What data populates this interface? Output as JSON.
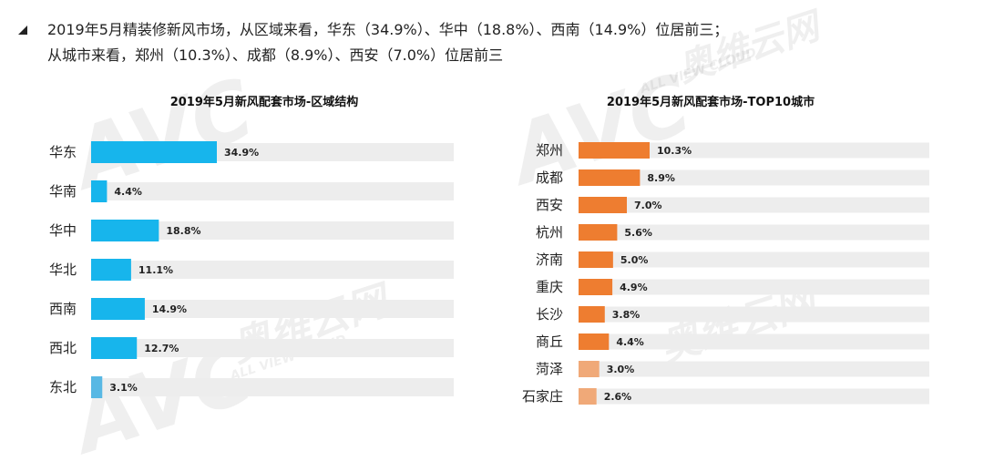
{
  "header": {
    "line1": "2019年5月精装修新风市场，从区域来看，华东（34.9%）、华中（18.8%）、西南（14.9%）位居前三；",
    "line2": "从城市来看，郑州（10.3%）、成都（8.9%）、西安（7.0%）位居前三"
  },
  "watermark": {
    "logo": "AVC",
    "brand": "奥维云网",
    "sub": "ALL VIEW CLOUD"
  },
  "colors": {
    "left_bar": "#17b5ec",
    "left_bar_last": "#58b8e4",
    "right_bar": "#ee7d30",
    "right_bar_low": "#f0a978",
    "track": "#ededed"
  },
  "chart_data": [
    {
      "type": "bar",
      "orientation": "horizontal",
      "title": "2019年5月新风配套市场-区域结构",
      "categories": [
        "华东",
        "华南",
        "华中",
        "华北",
        "西南",
        "西北",
        "东北"
      ],
      "values": [
        34.9,
        4.4,
        18.8,
        11.1,
        14.9,
        12.7,
        3.1
      ],
      "value_labels": [
        "34.9%",
        "4.4%",
        "18.8%",
        "11.1%",
        "14.9%",
        "12.7%",
        "3.1%"
      ],
      "unit": "%"
    },
    {
      "type": "bar",
      "orientation": "horizontal",
      "title": "2019年5月新风配套市场-TOP10城市",
      "categories": [
        "郑州",
        "成都",
        "西安",
        "杭州",
        "济南",
        "重庆",
        "长沙",
        "商丘",
        "菏泽",
        "石家庄"
      ],
      "values": [
        10.3,
        8.9,
        7.0,
        5.6,
        5.0,
        4.9,
        3.8,
        4.4,
        3.0,
        2.6
      ],
      "value_labels": [
        "10.3%",
        "8.9%",
        "7.0%",
        "5.6%",
        "5.0%",
        "4.9%",
        "3.8%",
        "4.4%",
        "3.0%",
        "2.6%"
      ],
      "unit": "%"
    }
  ]
}
